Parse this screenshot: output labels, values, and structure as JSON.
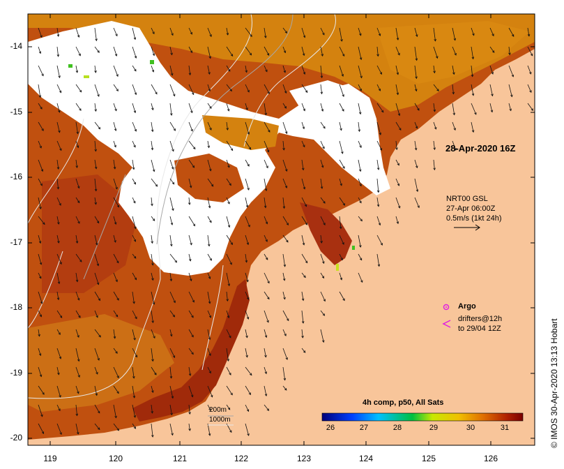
{
  "map": {
    "timestamp": "28-Apr-2020 16Z",
    "current_source": {
      "name": "NRT00 GSL",
      "time": "27-Apr 06:00Z",
      "scale": "0.5m/s (1kt 24h)"
    },
    "argo_label": "Argo",
    "drifters_line1": "drifters@12h",
    "drifters_line2": "to 29/04 12Z",
    "colorbar": {
      "title": "4h comp, p50, All Sats",
      "ticks": [
        "26",
        "27",
        "28",
        "29",
        "30",
        "31"
      ],
      "range": [
        25.6,
        31.6
      ]
    },
    "credit": "© IMOS 30-Apr-2020 13:13 Hobart",
    "depth_200": "200m",
    "depth_1000": "1000m",
    "x_ticks": [
      "119",
      "120",
      "121",
      "122",
      "123",
      "124",
      "125",
      "126"
    ],
    "y_ticks": [
      "-14",
      "-15",
      "-16",
      "-17",
      "-18",
      "-19",
      "-20"
    ],
    "colors": {
      "land": "#f8c59a",
      "cloud": "#ffffff",
      "sst_warm": "#a02a0a",
      "sst_mid": "#c04a10",
      "sst_cool": "#d98a12",
      "argo": "#e020e0",
      "drifter": "#e020e0"
    }
  }
}
